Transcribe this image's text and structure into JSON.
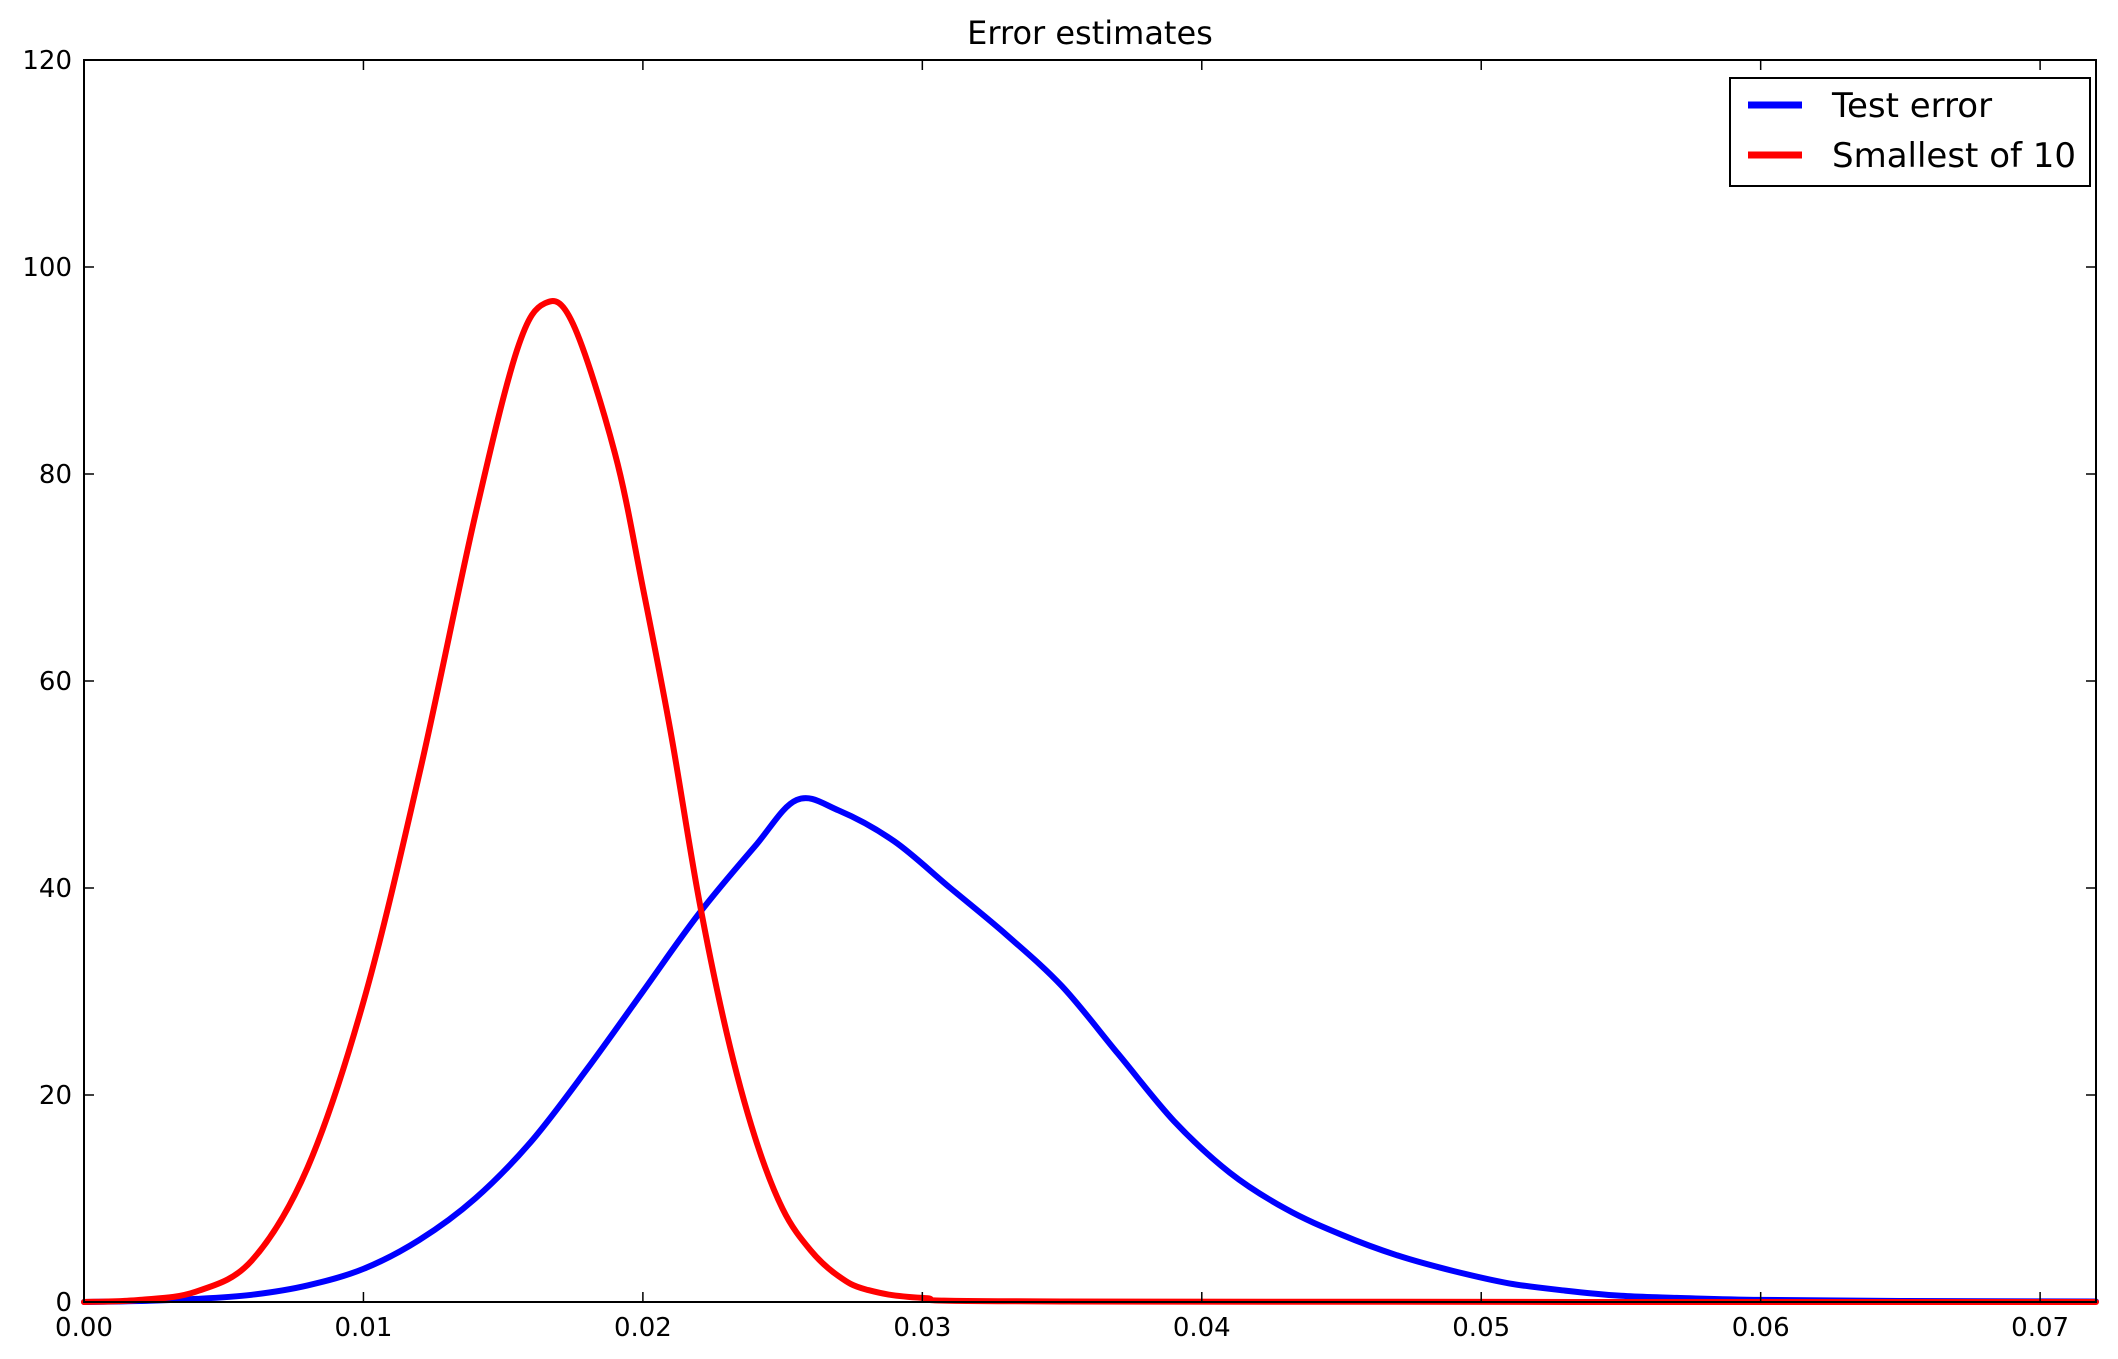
{
  "chart_data": {
    "type": "line",
    "title": "Error estimates",
    "xlabel": "",
    "ylabel": "",
    "xlim": [
      0.0,
      0.072
    ],
    "ylim": [
      0,
      120
    ],
    "x_ticks": [
      "0.00",
      "0.01",
      "0.02",
      "0.03",
      "0.04",
      "0.05",
      "0.06",
      "0.07"
    ],
    "y_ticks": [
      "0",
      "20",
      "40",
      "60",
      "80",
      "100",
      "120"
    ],
    "grid": false,
    "legend_position": "top-right",
    "series": [
      {
        "name": "Test error",
        "color": "#0000ff",
        "points": [
          [
            0.0,
            0.0
          ],
          [
            0.002,
            0.1
          ],
          [
            0.004,
            0.3
          ],
          [
            0.006,
            0.7
          ],
          [
            0.008,
            1.6
          ],
          [
            0.01,
            3.2
          ],
          [
            0.012,
            6.0
          ],
          [
            0.014,
            10.0
          ],
          [
            0.016,
            15.5
          ],
          [
            0.018,
            22.5
          ],
          [
            0.02,
            30.0
          ],
          [
            0.022,
            37.5
          ],
          [
            0.024,
            44.0
          ],
          [
            0.0255,
            48.5
          ],
          [
            0.027,
            47.5
          ],
          [
            0.029,
            44.5
          ],
          [
            0.031,
            40.0
          ],
          [
            0.033,
            35.5
          ],
          [
            0.035,
            30.5
          ],
          [
            0.037,
            24.0
          ],
          [
            0.039,
            17.5
          ],
          [
            0.041,
            12.5
          ],
          [
            0.043,
            9.0
          ],
          [
            0.045,
            6.5
          ],
          [
            0.047,
            4.5
          ],
          [
            0.049,
            3.0
          ],
          [
            0.051,
            1.8
          ],
          [
            0.053,
            1.1
          ],
          [
            0.055,
            0.6
          ],
          [
            0.057,
            0.4
          ],
          [
            0.06,
            0.2
          ],
          [
            0.065,
            0.1
          ],
          [
            0.072,
            0.05
          ]
        ]
      },
      {
        "name": "Smallest of 10",
        "color": "#ff0000",
        "points": [
          [
            0.0,
            0.0
          ],
          [
            0.002,
            0.2
          ],
          [
            0.004,
            1.0
          ],
          [
            0.006,
            4.0
          ],
          [
            0.008,
            13.0
          ],
          [
            0.01,
            29.0
          ],
          [
            0.012,
            51.0
          ],
          [
            0.014,
            76.0
          ],
          [
            0.0155,
            92.0
          ],
          [
            0.0165,
            96.5
          ],
          [
            0.0175,
            94.5
          ],
          [
            0.019,
            82.0
          ],
          [
            0.02,
            69.0
          ],
          [
            0.021,
            55.0
          ],
          [
            0.022,
            39.0
          ],
          [
            0.023,
            26.0
          ],
          [
            0.024,
            16.0
          ],
          [
            0.025,
            9.0
          ],
          [
            0.026,
            5.0
          ],
          [
            0.027,
            2.5
          ],
          [
            0.028,
            1.2
          ],
          [
            0.03,
            0.4
          ],
          [
            0.035,
            0.05
          ],
          [
            0.072,
            0.0
          ]
        ]
      }
    ]
  }
}
